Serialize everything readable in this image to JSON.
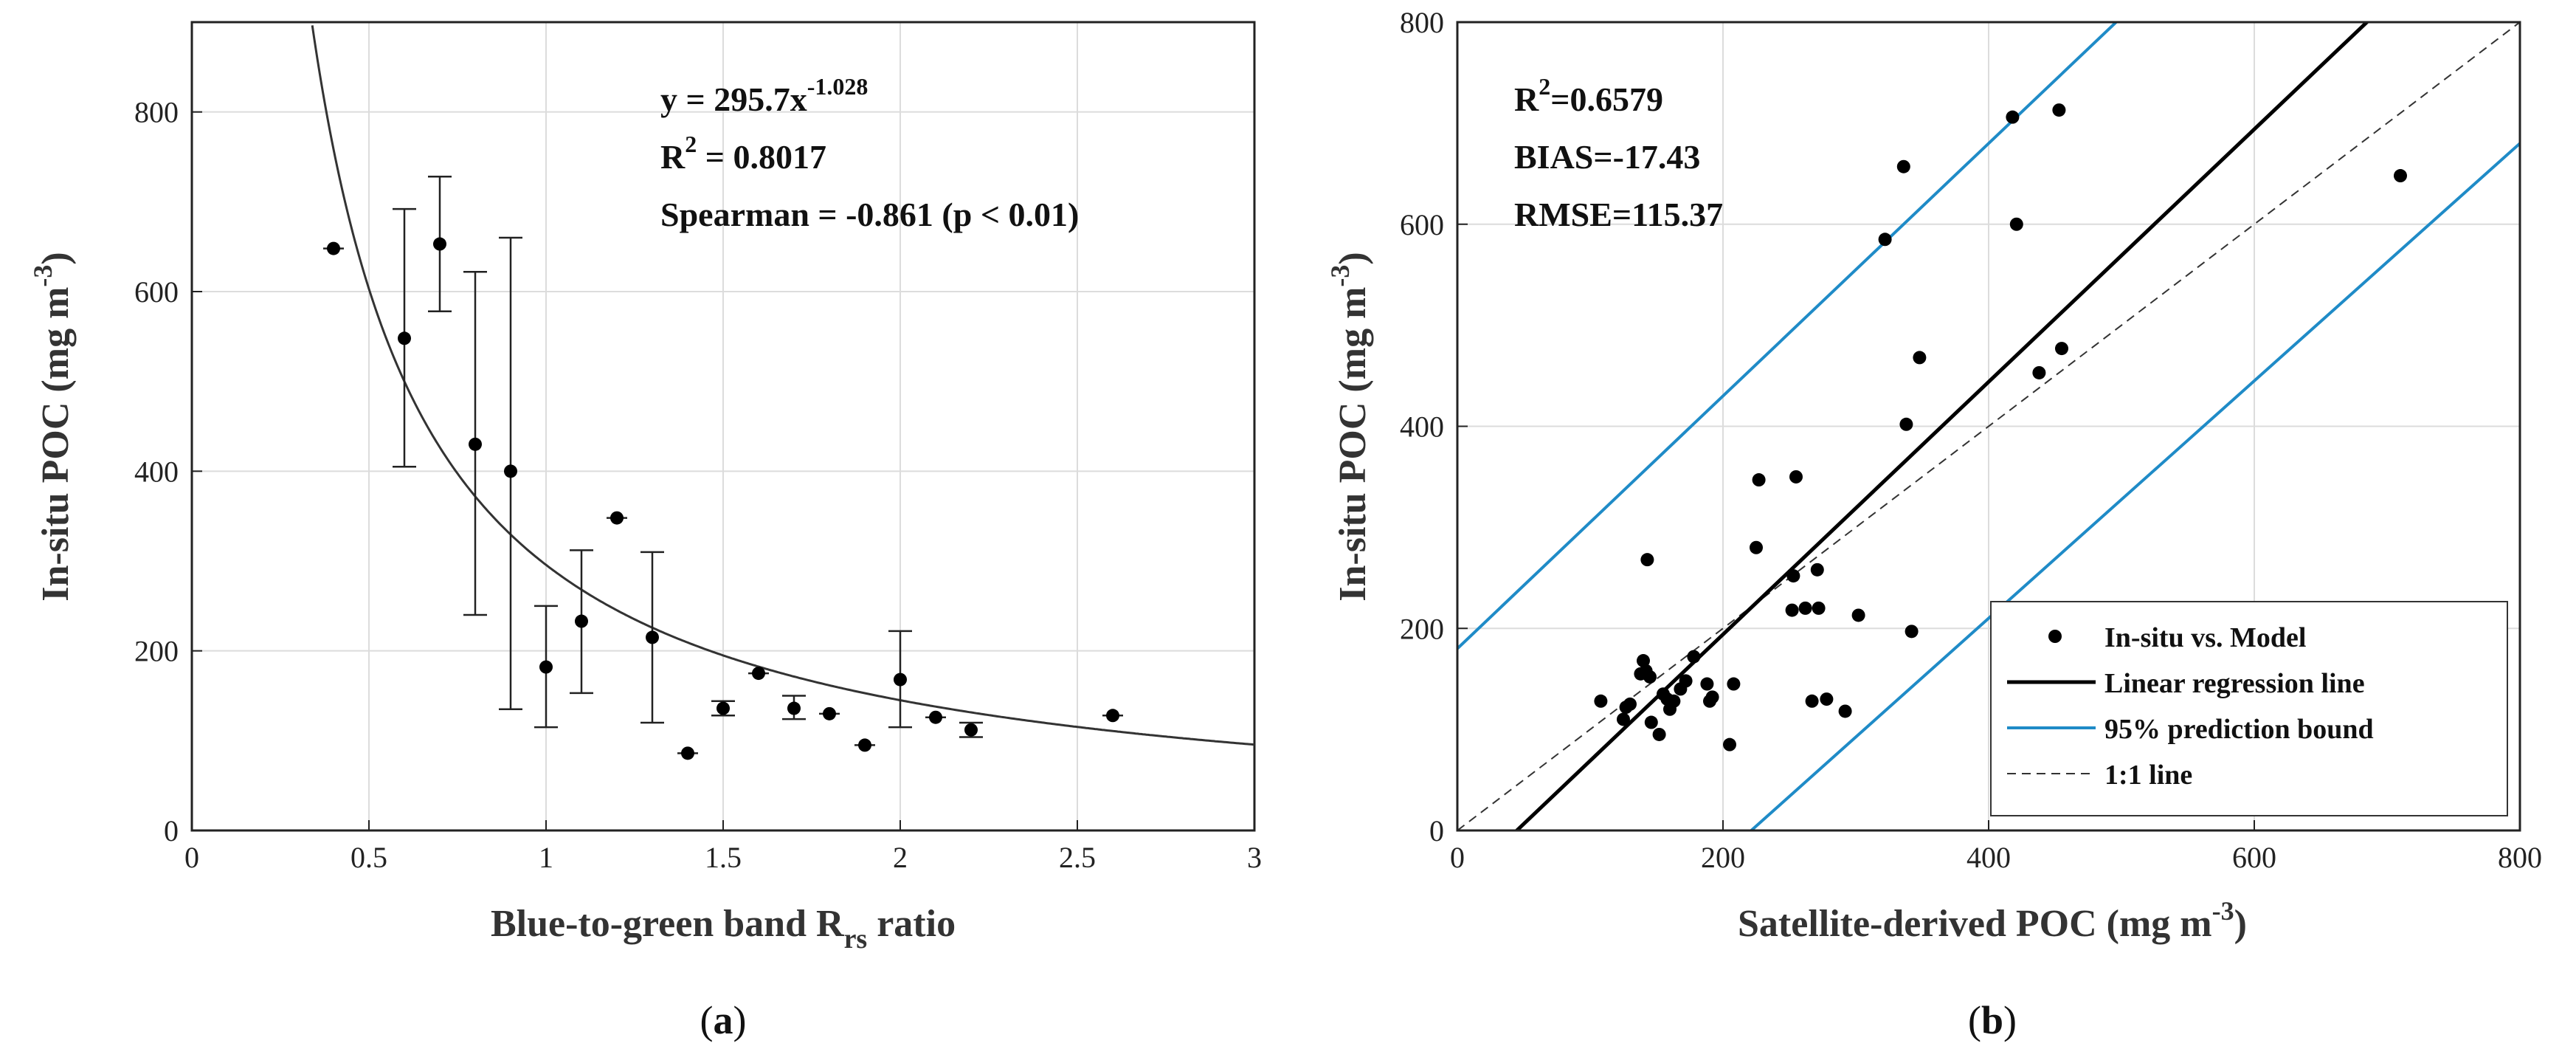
{
  "chart_data": [
    {
      "id": "a",
      "type": "scatter",
      "caption": "a",
      "xlabel_main": "Blue-to-green band R",
      "xlabel_sub": "rs",
      "xlabel_end": " ratio",
      "ylabel_main": "In-situ POC (mg m",
      "ylabel_sup": "-3",
      "ylabel_end": ")",
      "xlim": [
        0,
        3
      ],
      "ylim": [
        0,
        900
      ],
      "xticks": [
        0,
        0.5,
        1,
        1.5,
        2,
        2.5,
        3
      ],
      "xtick_labels": [
        "0",
        "0.5",
        "1",
        "1.5",
        "2",
        "2.5",
        "3"
      ],
      "yticks": [
        0,
        200,
        400,
        600,
        800
      ],
      "ytick_labels": [
        "0",
        "200",
        "400",
        "600",
        "800"
      ],
      "annotation": {
        "eq_main": "y = 295.7x",
        "eq_sup": "-1.028",
        "r2_main": "R",
        "r2_sup": "2",
        "r2_end": " = 0.8017",
        "spearman": "Spearman = -0.861 (p < 0.01)"
      },
      "fit": {
        "a": 295.7,
        "b": -1.028
      },
      "points": [
        {
          "x": 0.4,
          "y": 648,
          "lo": 648,
          "hi": 648
        },
        {
          "x": 0.6,
          "y": 548,
          "lo": 405,
          "hi": 692
        },
        {
          "x": 0.7,
          "y": 653,
          "lo": 578,
          "hi": 728
        },
        {
          "x": 0.8,
          "y": 430,
          "lo": 240,
          "hi": 622
        },
        {
          "x": 0.9,
          "y": 400,
          "lo": 135,
          "hi": 660
        },
        {
          "x": 1.0,
          "y": 182,
          "lo": 115,
          "hi": 250
        },
        {
          "x": 1.1,
          "y": 233,
          "lo": 153,
          "hi": 312
        },
        {
          "x": 1.2,
          "y": 348,
          "lo": 348,
          "hi": 348
        },
        {
          "x": 1.3,
          "y": 215,
          "lo": 120,
          "hi": 310
        },
        {
          "x": 1.4,
          "y": 86,
          "lo": 86,
          "hi": 86
        },
        {
          "x": 1.5,
          "y": 136,
          "lo": 128,
          "hi": 144
        },
        {
          "x": 1.6,
          "y": 175,
          "lo": 175,
          "hi": 175
        },
        {
          "x": 1.7,
          "y": 136,
          "lo": 124,
          "hi": 150
        },
        {
          "x": 1.8,
          "y": 130,
          "lo": 130,
          "hi": 130
        },
        {
          "x": 1.9,
          "y": 95,
          "lo": 95,
          "hi": 95
        },
        {
          "x": 2.0,
          "y": 168,
          "lo": 115,
          "hi": 222
        },
        {
          "x": 2.1,
          "y": 126,
          "lo": 126,
          "hi": 126
        },
        {
          "x": 2.2,
          "y": 112,
          "lo": 104,
          "hi": 120
        },
        {
          "x": 2.6,
          "y": 128,
          "lo": 128,
          "hi": 128
        }
      ]
    },
    {
      "id": "b",
      "type": "scatter",
      "caption": "b",
      "xlabel_main": "Satellite-derived POC (mg m",
      "xlabel_sup": "-3",
      "xlabel_end": ")",
      "ylabel_main": "In-situ POC (mg m",
      "ylabel_sup": "-3",
      "ylabel_end": ")",
      "xlim": [
        0,
        800
      ],
      "ylim": [
        0,
        800
      ],
      "xticks": [
        0,
        200,
        400,
        600,
        800
      ],
      "xtick_labels": [
        "0",
        "200",
        "400",
        "600",
        "800"
      ],
      "yticks": [
        0,
        200,
        400,
        600,
        800
      ],
      "ytick_labels": [
        "0",
        "200",
        "400",
        "600",
        "800"
      ],
      "annotation": {
        "r2_main": "R",
        "r2_sup": "2",
        "r2_end": "=0.6579",
        "bias": "BIAS=-17.43",
        "rmse": "RMSE=115.37"
      },
      "regression": {
        "slope": 1.25,
        "intercept": -56
      },
      "pred_upper": {
        "slope": 1.25,
        "intercept": 180
      },
      "pred_lower": {
        "slope": 1.175,
        "intercept": -260
      },
      "legend": {
        "position": "bottom-right",
        "entries": [
          "In-situ vs. Model",
          "Linear regression line",
          "95% prediction bound",
          "1:1 line"
        ]
      },
      "points": [
        {
          "x": 108,
          "y": 128
        },
        {
          "x": 125,
          "y": 110
        },
        {
          "x": 127,
          "y": 122
        },
        {
          "x": 130,
          "y": 125
        },
        {
          "x": 138,
          "y": 155
        },
        {
          "x": 140,
          "y": 168
        },
        {
          "x": 142,
          "y": 158
        },
        {
          "x": 143,
          "y": 268
        },
        {
          "x": 145,
          "y": 152
        },
        {
          "x": 146,
          "y": 107
        },
        {
          "x": 152,
          "y": 95
        },
        {
          "x": 155,
          "y": 135
        },
        {
          "x": 158,
          "y": 130
        },
        {
          "x": 160,
          "y": 120
        },
        {
          "x": 163,
          "y": 128
        },
        {
          "x": 168,
          "y": 140
        },
        {
          "x": 172,
          "y": 148
        },
        {
          "x": 178,
          "y": 172
        },
        {
          "x": 188,
          "y": 145
        },
        {
          "x": 190,
          "y": 128
        },
        {
          "x": 192,
          "y": 132
        },
        {
          "x": 205,
          "y": 85
        },
        {
          "x": 208,
          "y": 145
        },
        {
          "x": 225,
          "y": 280
        },
        {
          "x": 227,
          "y": 347
        },
        {
          "x": 252,
          "y": 218
        },
        {
          "x": 253,
          "y": 252
        },
        {
          "x": 255,
          "y": 350
        },
        {
          "x": 262,
          "y": 220
        },
        {
          "x": 267,
          "y": 128
        },
        {
          "x": 271,
          "y": 258
        },
        {
          "x": 272,
          "y": 220
        },
        {
          "x": 278,
          "y": 130
        },
        {
          "x": 292,
          "y": 118
        },
        {
          "x": 302,
          "y": 213
        },
        {
          "x": 322,
          "y": 585
        },
        {
          "x": 336,
          "y": 657
        },
        {
          "x": 338,
          "y": 402
        },
        {
          "x": 342,
          "y": 197
        },
        {
          "x": 348,
          "y": 468
        },
        {
          "x": 418,
          "y": 706
        },
        {
          "x": 421,
          "y": 600
        },
        {
          "x": 438,
          "y": 453
        },
        {
          "x": 453,
          "y": 713
        },
        {
          "x": 455,
          "y": 477
        },
        {
          "x": 710,
          "y": 648
        }
      ]
    }
  ]
}
